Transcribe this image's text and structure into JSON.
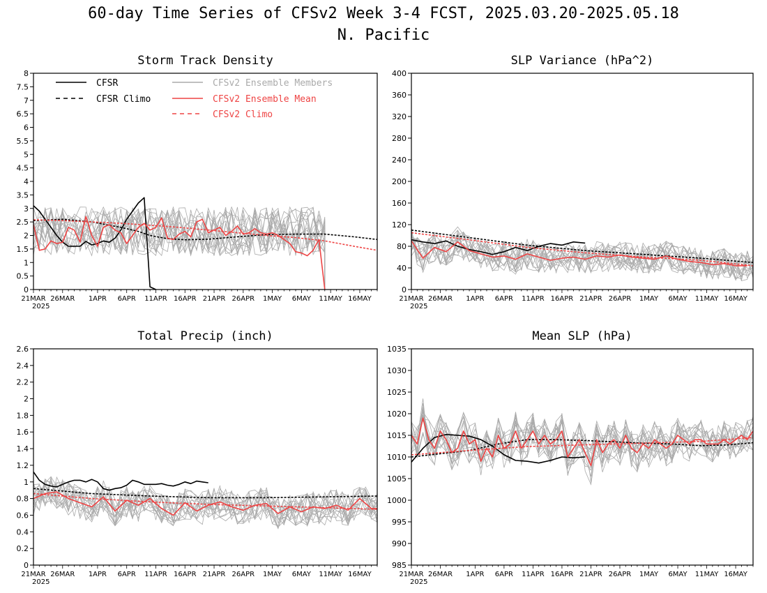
{
  "figure": {
    "title_line1": "60-day Time Series of CFSv2 Week 3-4 FCST, 2025.03.20-2025.05.18",
    "title_line2": "N. Pacific"
  },
  "colors": {
    "cfsr": "#000000",
    "cfsv2_mean": "#ee4444",
    "ensemble_members": "#aaaaaa"
  },
  "legend": {
    "entries": [
      {
        "label": "CFSR",
        "style": "solid",
        "color": "#000000"
      },
      {
        "label": "CFSR Climo",
        "style": "dashed",
        "color": "#000000"
      },
      {
        "label": "CFSv2 Ensemble Members",
        "style": "solid",
        "color": "#aaaaaa"
      },
      {
        "label": "CFSv2 Ensemble Mean",
        "style": "solid",
        "color": "#ee4444"
      },
      {
        "label": "CFSv2 Climo",
        "style": "dashed",
        "color": "#ee4444"
      }
    ]
  },
  "chart_data": [
    {
      "type": "line",
      "title": "Storm Track Density",
      "ylim": [
        0,
        8
      ],
      "yticks": [
        "0",
        "0.5",
        "1",
        "1.5",
        "2",
        "2.5",
        "3",
        "3.5",
        "4",
        "4.5",
        "5",
        "5.5",
        "6",
        "6.5",
        "7",
        "7.5",
        "8"
      ],
      "xlim_days": [
        0,
        59
      ],
      "xticks": [
        "21MAR",
        "26MAR",
        "1APR",
        "6APR",
        "11APR",
        "16APR",
        "21APR",
        "26APR",
        "1MAY",
        "6MAY",
        "11MAY",
        "16MAY"
      ],
      "xtick_sublabel": "2025",
      "series": [
        {
          "name": "CFSR",
          "x": [
            0,
            1,
            2,
            3,
            4,
            5,
            6,
            7,
            8,
            9,
            10,
            11,
            12,
            13,
            14,
            15,
            16,
            17,
            18,
            19,
            20,
            21
          ],
          "y": [
            3.1,
            2.9,
            2.6,
            2.3,
            2.0,
            1.75,
            1.6,
            1.6,
            1.6,
            1.78,
            1.65,
            1.7,
            1.8,
            1.75,
            1.9,
            2.2,
            2.6,
            2.9,
            3.2,
            3.4,
            0.1,
            0.0
          ]
        },
        {
          "name": "CFSR Climo",
          "x": [
            0,
            5,
            10,
            15,
            18,
            20,
            23,
            26,
            30,
            35,
            40,
            45,
            50,
            55,
            59
          ],
          "y": [
            2.55,
            2.6,
            2.5,
            2.3,
            2.15,
            2.0,
            1.88,
            1.84,
            1.86,
            1.95,
            2.03,
            2.05,
            2.05,
            1.95,
            1.85
          ]
        },
        {
          "name": "CFSv2 Ensemble Mean",
          "x": [
            0,
            1,
            2,
            3,
            4,
            5,
            6,
            7,
            8,
            9,
            10,
            11,
            12,
            13,
            14,
            15,
            16,
            17,
            18,
            19,
            20,
            21,
            22,
            23,
            24,
            25,
            26,
            27,
            28,
            29,
            30,
            31,
            32,
            33,
            34,
            35,
            36,
            37,
            38,
            39,
            40,
            41,
            42,
            43,
            44,
            45,
            46,
            47,
            48,
            49,
            50
          ],
          "y": [
            2.4,
            1.45,
            1.5,
            1.8,
            1.7,
            1.75,
            2.3,
            2.2,
            1.75,
            2.7,
            2.0,
            1.6,
            2.3,
            2.4,
            2.2,
            2.1,
            1.7,
            2.0,
            2.3,
            2.45,
            2.2,
            2.3,
            2.65,
            1.9,
            1.85,
            2.05,
            2.15,
            1.95,
            2.5,
            2.6,
            2.1,
            2.2,
            2.3,
            2.0,
            2.15,
            2.35,
            2.05,
            2.1,
            2.25,
            2.1,
            2.05,
            2.1,
            2.0,
            1.85,
            1.7,
            1.4,
            1.35,
            1.25,
            1.45,
            1.85,
            0.0
          ]
        },
        {
          "name": "CFSv2 Climo",
          "x": [
            0,
            5,
            10,
            15,
            20,
            25,
            30,
            35,
            40,
            45,
            50,
            55,
            59
          ],
          "y": [
            2.58,
            2.55,
            2.5,
            2.45,
            2.38,
            2.3,
            2.2,
            2.1,
            2.0,
            1.92,
            1.8,
            1.6,
            1.45
          ]
        }
      ],
      "ensemble": {
        "members": 16,
        "center": 2.15,
        "spread": 0.9,
        "days": 50
      }
    },
    {
      "type": "line",
      "title": "SLP Variance (hPa^2)",
      "ylim": [
        0,
        400
      ],
      "yticks": [
        "0",
        "40",
        "80",
        "120",
        "160",
        "200",
        "240",
        "280",
        "320",
        "360",
        "400"
      ],
      "xlim_days": [
        0,
        59
      ],
      "xticks": [
        "21MAR",
        "26MAR",
        "1APR",
        "6APR",
        "11APR",
        "16APR",
        "21APR",
        "26APR",
        "1MAY",
        "6MAY",
        "11MAY",
        "16MAY"
      ],
      "xtick_sublabel": "2025",
      "series": [
        {
          "name": "CFSR",
          "x": [
            0,
            2,
            4,
            6,
            8,
            10,
            12,
            14,
            16,
            18,
            20,
            22,
            24,
            26,
            28,
            30
          ],
          "y": [
            92,
            88,
            85,
            90,
            80,
            74,
            70,
            65,
            70,
            78,
            72,
            80,
            85,
            82,
            88,
            86
          ]
        },
        {
          "name": "CFSR Climo",
          "x": [
            0,
            10,
            20,
            30,
            40,
            50,
            59
          ],
          "y": [
            110,
            96,
            82,
            72,
            65,
            58,
            50
          ]
        },
        {
          "name": "CFSv2 Ensemble Mean",
          "x": [
            0,
            2,
            4,
            6,
            8,
            10,
            12,
            14,
            16,
            18,
            20,
            22,
            24,
            26,
            28,
            30,
            32,
            34,
            36,
            38,
            40,
            42,
            44,
            46,
            48,
            50,
            52,
            54,
            56,
            58
          ],
          "y": [
            90,
            58,
            78,
            70,
            88,
            72,
            66,
            60,
            62,
            56,
            66,
            60,
            54,
            58,
            60,
            56,
            62,
            60,
            64,
            60,
            58,
            56,
            62,
            56,
            52,
            50,
            46,
            48,
            44,
            44
          ]
        },
        {
          "name": "CFSv2 Climo",
          "x": [
            0,
            10,
            20,
            30,
            40,
            50,
            59
          ],
          "y": [
            105,
            92,
            78,
            68,
            60,
            54,
            44
          ]
        }
      ],
      "ensemble": {
        "members": 16,
        "center": 62,
        "spread": 28,
        "days": 60
      }
    },
    {
      "type": "line",
      "title": "Total Precip (inch)",
      "ylim": [
        0,
        2.6
      ],
      "yticks": [
        "0",
        "0.2",
        "0.4",
        "0.6",
        "0.8",
        "1",
        "1.2",
        "1.4",
        "1.6",
        "1.8",
        "2",
        "2.2",
        "2.4",
        "2.6"
      ],
      "xlim_days": [
        0,
        59
      ],
      "xticks": [
        "21MAR",
        "26MAR",
        "1APR",
        "6APR",
        "11APR",
        "16APR",
        "21APR",
        "26APR",
        "1MAY",
        "6MAY",
        "11MAY",
        "16MAY"
      ],
      "xtick_sublabel": "2025",
      "series": [
        {
          "name": "CFSR",
          "x": [
            0,
            1,
            2,
            3,
            4,
            5,
            6,
            7,
            8,
            9,
            10,
            11,
            12,
            13,
            14,
            15,
            16,
            17,
            18,
            19,
            20,
            21,
            22,
            23,
            24,
            25,
            26,
            27,
            28,
            29,
            30
          ],
          "y": [
            1.12,
            1.02,
            0.97,
            0.95,
            0.94,
            0.97,
            1.0,
            1.02,
            1.02,
            1.0,
            1.03,
            1.0,
            0.92,
            0.9,
            0.92,
            0.93,
            0.96,
            1.02,
            1.0,
            0.97,
            0.97,
            0.97,
            0.98,
            0.96,
            0.95,
            0.97,
            1.0,
            0.98,
            1.01,
            1.0,
            0.99
          ]
        },
        {
          "name": "CFSR Climo",
          "x": [
            0,
            10,
            20,
            30,
            40,
            50,
            59
          ],
          "y": [
            0.92,
            0.86,
            0.83,
            0.81,
            0.81,
            0.82,
            0.83
          ]
        },
        {
          "name": "CFSv2 Ensemble Mean",
          "x": [
            0,
            2,
            4,
            6,
            8,
            10,
            12,
            14,
            16,
            18,
            20,
            22,
            24,
            26,
            28,
            30,
            32,
            34,
            36,
            38,
            40,
            42,
            44,
            46,
            48,
            50,
            52,
            54,
            56,
            58,
            59
          ],
          "y": [
            0.8,
            0.86,
            0.88,
            0.8,
            0.75,
            0.7,
            0.82,
            0.65,
            0.78,
            0.72,
            0.8,
            0.68,
            0.6,
            0.75,
            0.65,
            0.72,
            0.76,
            0.7,
            0.66,
            0.72,
            0.74,
            0.62,
            0.7,
            0.64,
            0.7,
            0.68,
            0.72,
            0.66,
            0.8,
            0.68,
            0.68
          ]
        },
        {
          "name": "CFSv2 Climo",
          "x": [
            0,
            10,
            20,
            30,
            40,
            50,
            59
          ],
          "y": [
            0.86,
            0.8,
            0.76,
            0.73,
            0.71,
            0.69,
            0.67
          ]
        }
      ],
      "ensemble": {
        "members": 16,
        "center": 0.74,
        "spread": 0.2,
        "days": 60
      }
    },
    {
      "type": "line",
      "title": "Mean SLP (hPa)",
      "ylim": [
        985,
        1035
      ],
      "yticks": [
        "985",
        "990",
        "995",
        "1000",
        "1005",
        "1010",
        "1015",
        "1020",
        "1025",
        "1030",
        "1035"
      ],
      "xlim_days": [
        0,
        59
      ],
      "xticks": [
        "21MAR",
        "26MAR",
        "1APR",
        "6APR",
        "11APR",
        "16APR",
        "21APR",
        "26APR",
        "1MAY",
        "6MAY",
        "11MAY",
        "16MAY"
      ],
      "xtick_sublabel": "2025",
      "series": [
        {
          "name": "CFSR",
          "x": [
            0,
            2,
            4,
            6,
            8,
            10,
            12,
            14,
            16,
            18,
            20,
            22,
            24,
            26,
            28,
            30
          ],
          "y": [
            1008.8,
            1012,
            1014.5,
            1015.2,
            1015,
            1014.8,
            1014,
            1012.5,
            1010.5,
            1009.2,
            1009,
            1008.6,
            1009.2,
            1010,
            1009.8,
            1010
          ]
        },
        {
          "name": "CFSR Climo",
          "x": [
            0,
            10,
            15,
            20,
            25,
            30,
            35,
            40,
            45,
            50,
            55,
            59
          ],
          "y": [
            1010,
            1011.5,
            1013,
            1014,
            1014,
            1013.8,
            1013.5,
            1013.2,
            1013,
            1012.6,
            1012.8,
            1013.3
          ]
        },
        {
          "name": "CFSv2 Ensemble Mean",
          "x": [
            0,
            1,
            2,
            3,
            4,
            5,
            6,
            7,
            8,
            9,
            10,
            11,
            12,
            13,
            14,
            15,
            16,
            17,
            18,
            19,
            20,
            21,
            22,
            23,
            24,
            25,
            26,
            27,
            28,
            29,
            30,
            31,
            32,
            33,
            34,
            35,
            36,
            37,
            38,
            39,
            40,
            41,
            42,
            43,
            44,
            45,
            46,
            47,
            48,
            49,
            50,
            51,
            52,
            53,
            54,
            55,
            56,
            57,
            58,
            59
          ],
          "y": [
            1015,
            1013,
            1019,
            1014,
            1012,
            1016,
            1014,
            1011,
            1012,
            1016,
            1013,
            1014,
            1009,
            1012,
            1010,
            1015,
            1012,
            1013,
            1016,
            1012,
            1014,
            1016,
            1013,
            1015,
            1013,
            1014,
            1016,
            1010,
            1012,
            1014,
            1011,
            1008,
            1014,
            1011,
            1013,
            1014,
            1012,
            1015,
            1012,
            1011,
            1013,
            1012,
            1014,
            1013,
            1012,
            1013,
            1015,
            1014,
            1013,
            1014,
            1014,
            1013,
            1013,
            1013,
            1014,
            1013,
            1014,
            1015,
            1014,
            1016
          ]
        },
        {
          "name": "CFSv2 Climo",
          "x": [
            0,
            10,
            20,
            30,
            40,
            50,
            59
          ],
          "y": [
            1010.5,
            1011.5,
            1012.4,
            1012.8,
            1013.2,
            1013.6,
            1014.5
          ]
        }
      ],
      "ensemble": {
        "members": 16,
        "center": 1013,
        "spread": 4.5,
        "days": 60
      }
    }
  ]
}
